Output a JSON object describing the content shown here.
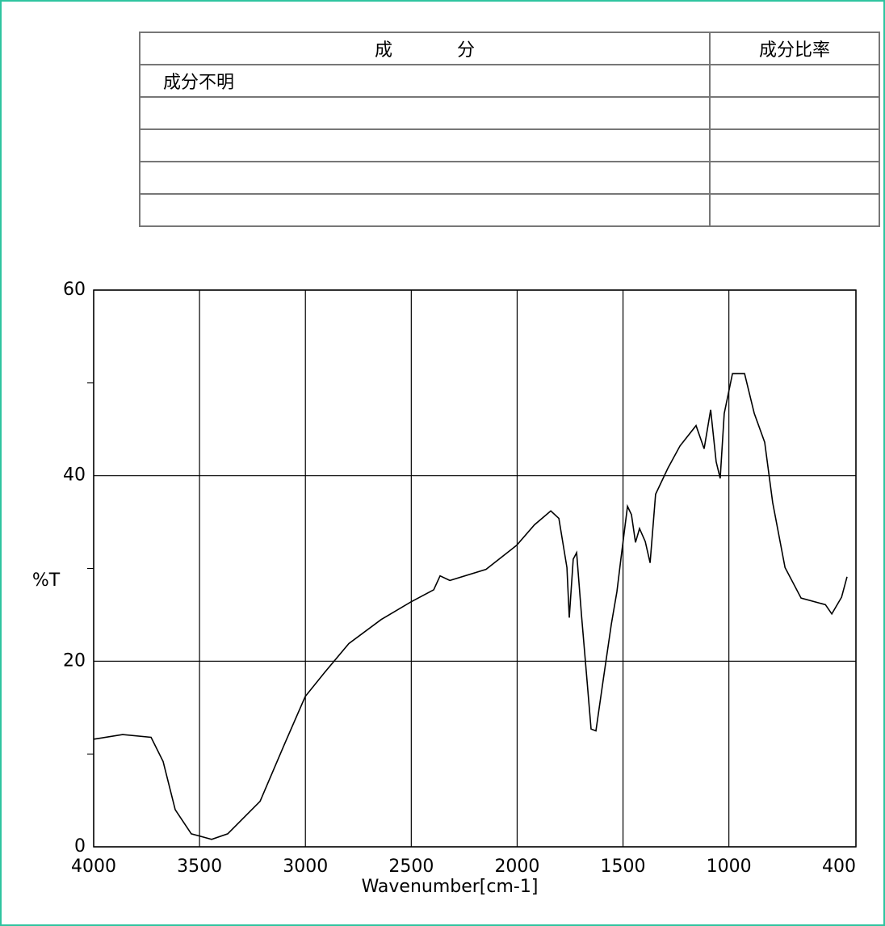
{
  "table": {
    "header": [
      "成分",
      "成分比率"
    ],
    "rows": [
      [
        "成分不明"
      ]
    ]
  },
  "chart_data": {
    "type": "line",
    "xlabel": "Wavenumber[cm-1]",
    "ylabel": "%T",
    "xlim": [
      4000,
      400
    ],
    "ylim": [
      0,
      60
    ],
    "xticks": [
      4000,
      3500,
      3000,
      2500,
      2000,
      1500,
      1000,
      400
    ],
    "yticks": [
      0,
      20,
      40,
      60
    ],
    "yminor": [
      10,
      30,
      50
    ],
    "grid": true,
    "series": [
      {
        "color": "#000000",
        "x": [
          4000,
          3863,
          3729,
          3672,
          3615,
          3539,
          3443,
          3367,
          3214,
          3100,
          3001,
          2909,
          2795,
          2642,
          2501,
          2394,
          2364,
          2318,
          2147,
          2002,
          1918,
          1841,
          1803,
          1765,
          1754,
          1735,
          1719,
          1696,
          1670,
          1651,
          1628,
          1594,
          1555,
          1529,
          1510,
          1479,
          1460,
          1441,
          1422,
          1395,
          1372,
          1346,
          1288,
          1231,
          1155,
          1117,
          1086,
          1060,
          1041,
          1022,
          983,
          926,
          880,
          831,
          793,
          735,
          659,
          544,
          514,
          468,
          442
        ],
        "values": [
          11.6,
          12.1,
          11.8,
          9.2,
          4.0,
          1.4,
          0.8,
          1.4,
          4.9,
          11.0,
          16.2,
          18.8,
          21.9,
          24.5,
          26.4,
          27.7,
          29.2,
          28.7,
          29.9,
          32.5,
          34.7,
          36.2,
          35.4,
          30.1,
          24.7,
          31.0,
          31.7,
          24.9,
          17.9,
          12.7,
          12.5,
          17.9,
          24.0,
          27.5,
          31.0,
          36.7,
          35.8,
          32.8,
          34.3,
          32.9,
          30.6,
          38.0,
          40.8,
          43.2,
          45.4,
          42.9,
          47.1,
          41.5,
          39.7,
          46.7,
          51.0,
          51.0,
          46.7,
          43.6,
          37.1,
          30.1,
          26.8,
          26.1,
          25.1,
          26.9,
          29.1
        ]
      }
    ]
  }
}
